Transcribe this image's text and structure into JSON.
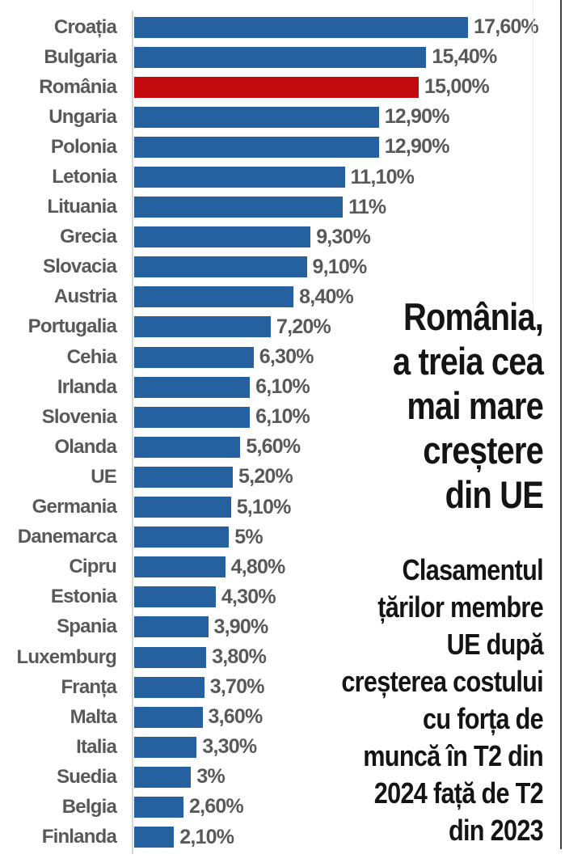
{
  "chart": {
    "bar_color": "#24619e",
    "highlight_color": "#c20b0e",
    "label_color": "#595959",
    "axis_color": "#d8d8d8"
  },
  "chart_data": {
    "type": "bar",
    "orientation": "horizontal",
    "title": "România, a treia cea mai mare creștere din UE",
    "xlabel": "",
    "ylabel": "",
    "xlim": [
      0,
      17.6
    ],
    "grid": false,
    "legend": false,
    "highlighted_category": "România",
    "categories": [
      "Croația",
      "Bulgaria",
      "România",
      "Ungaria",
      "Polonia",
      "Letonia",
      "Lituania",
      "Grecia",
      "Slovacia",
      "Austria",
      "Portugalia",
      "Cehia",
      "Irlanda",
      "Slovenia",
      "Olanda",
      "UE",
      "Germania",
      "Danemarca",
      "Cipru",
      "Estonia",
      "Spania",
      "Luxemburg",
      "Franța",
      "Malta",
      "Italia",
      "Suedia",
      "Belgia",
      "Finlanda"
    ],
    "values": [
      17.6,
      15.4,
      15.0,
      12.9,
      12.9,
      11.1,
      11.0,
      9.3,
      9.1,
      8.4,
      7.2,
      6.3,
      6.1,
      6.1,
      5.6,
      5.2,
      5.1,
      5.0,
      4.8,
      4.3,
      3.9,
      3.8,
      3.7,
      3.6,
      3.3,
      3.0,
      2.6,
      2.1
    ],
    "display_values": [
      "17,60%",
      "15,40%",
      "15,00%",
      "12,90%",
      "12,90%",
      "11,10%",
      "11%",
      "9,30%",
      "9,10%",
      "8,40%",
      "7,20%",
      "6,30%",
      "6,10%",
      "6,10%",
      "5,60%",
      "5,20%",
      "5,10%",
      "5%",
      "4,80%",
      "4,30%",
      "3,90%",
      "3,80%",
      "3,70%",
      "3,60%",
      "3,30%",
      "3%",
      "2,60%",
      "2,10%"
    ]
  },
  "annotation": {
    "headline": "România,\na treia cea\nmai mare\ncreștere\ndin UE",
    "subtitle": "Clasamentul\nțărilor membre\nUE după\ncreșterea costului\ncu forța de\nmuncă în T2 din\n2024 față de T2\ndin 2023"
  }
}
